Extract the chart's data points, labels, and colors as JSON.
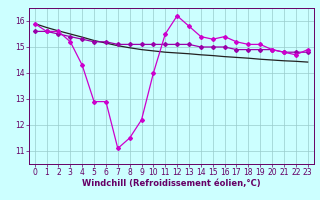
{
  "x": [
    0,
    1,
    2,
    3,
    4,
    5,
    6,
    7,
    8,
    9,
    10,
    11,
    12,
    13,
    14,
    15,
    16,
    17,
    18,
    19,
    20,
    21,
    22,
    23
  ],
  "line1": [
    15.9,
    15.6,
    15.6,
    15.2,
    14.3,
    12.9,
    12.9,
    11.1,
    11.5,
    12.2,
    14.0,
    15.5,
    16.2,
    15.8,
    15.4,
    15.3,
    15.4,
    15.2,
    15.1,
    15.1,
    14.9,
    14.8,
    14.7,
    14.9
  ],
  "line2": [
    15.6,
    15.6,
    15.5,
    15.4,
    15.3,
    15.2,
    15.2,
    15.1,
    15.1,
    15.1,
    15.1,
    15.1,
    15.1,
    15.1,
    15.0,
    15.0,
    15.0,
    14.9,
    14.9,
    14.9,
    14.9,
    14.8,
    14.8,
    14.8
  ],
  "line3": [
    15.9,
    15.75,
    15.62,
    15.5,
    15.38,
    15.25,
    15.15,
    15.05,
    14.97,
    14.9,
    14.85,
    14.8,
    14.77,
    14.74,
    14.7,
    14.67,
    14.63,
    14.6,
    14.57,
    14.53,
    14.5,
    14.47,
    14.45,
    14.42
  ],
  "line_color1": "#cc00cc",
  "line_color2": "#9900aa",
  "line_color3": "#222222",
  "bg_color": "#ccffff",
  "grid_color": "#99cccc",
  "axis_color": "#660066",
  "tick_color": "#660066",
  "xlabel": "Windchill (Refroidissement éolien,°C)",
  "ylim": [
    10.5,
    16.5
  ],
  "xlim": [
    -0.5,
    23.5
  ],
  "yticks": [
    11,
    12,
    13,
    14,
    15,
    16
  ],
  "xticks": [
    0,
    1,
    2,
    3,
    4,
    5,
    6,
    7,
    8,
    9,
    10,
    11,
    12,
    13,
    14,
    15,
    16,
    17,
    18,
    19,
    20,
    21,
    22,
    23
  ],
  "tick_fontsize": 5.5,
  "xlabel_fontsize": 6.0,
  "marker_size": 2.0,
  "linewidth": 0.9
}
